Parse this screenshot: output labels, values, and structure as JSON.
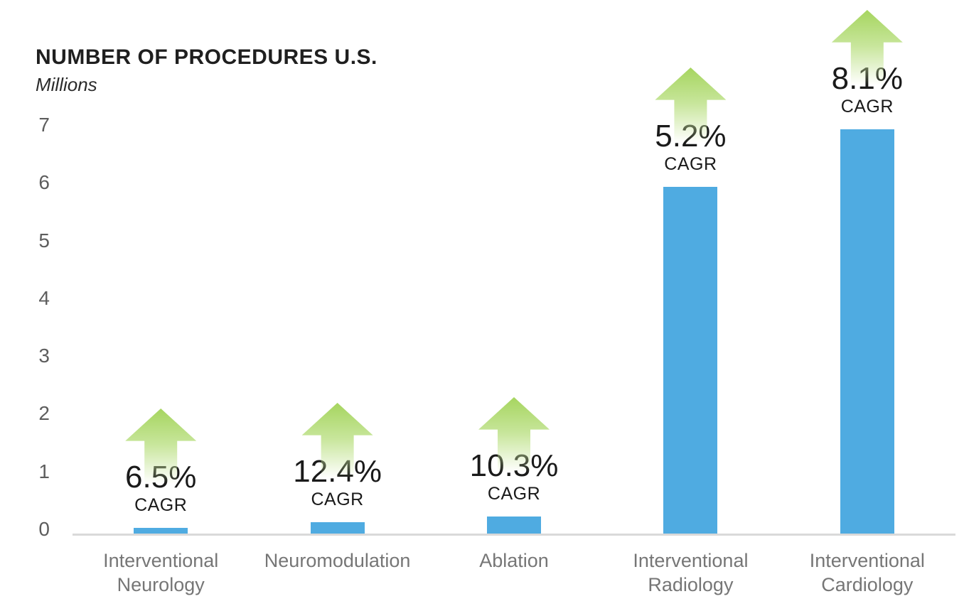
{
  "header": {
    "title": "NUMBER OF PROCEDURES U.S.",
    "subtitle": "Millions"
  },
  "chart_data": {
    "type": "bar",
    "title": "NUMBER OF PROCEDURES U.S.",
    "ylabel": "Millions",
    "xlabel": "",
    "categories": [
      "Interventional\nNeurology",
      "Neuromodulation",
      "Ablation",
      "Interventional\nRadiology",
      "Interventional\nCardiology"
    ],
    "values": [
      0.1,
      0.2,
      0.3,
      6.0,
      7.0
    ],
    "cagr_values": [
      "6.5%",
      "12.4%",
      "10.3%",
      "5.2%",
      "8.1%"
    ],
    "cagr_label": "CAGR",
    "y_ticks": [
      "0",
      "1",
      "2",
      "3",
      "4",
      "5",
      "6",
      "7"
    ],
    "ylim": [
      0,
      7
    ],
    "grid": false,
    "legend": false,
    "bar_color": "#4fabe1",
    "arrow_color": "#a6d55f",
    "axis_line_color": "#d9d9d9",
    "tick_text_color": "#5d5d5d",
    "category_text_color": "#767676"
  }
}
